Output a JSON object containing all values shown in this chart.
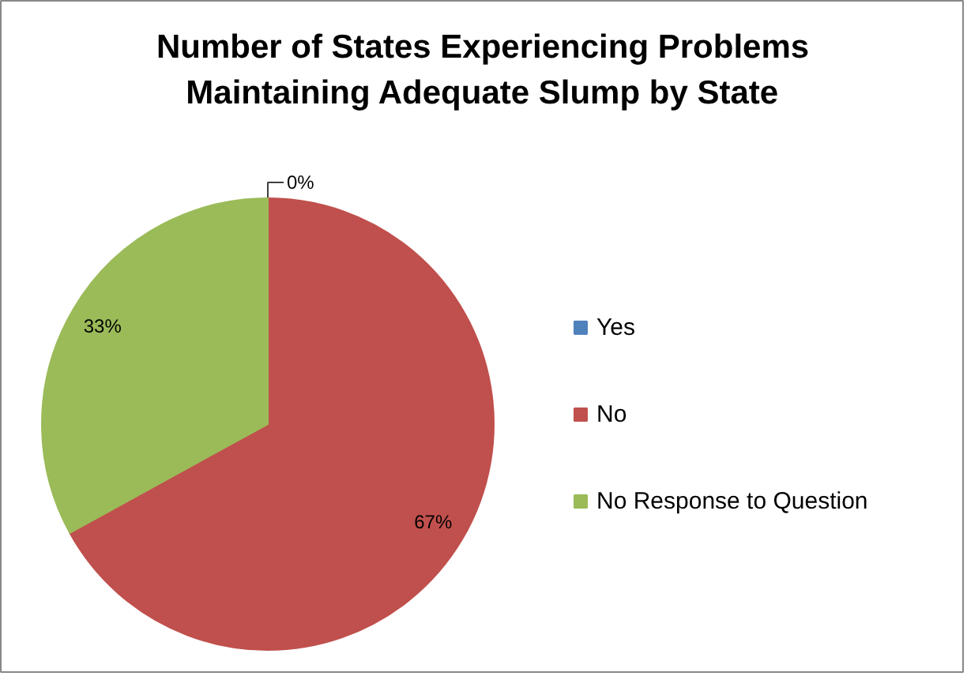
{
  "chart_data": {
    "type": "pie",
    "title": "Number of States Experiencing Problems\nMaintaining Adequate Slump by State",
    "categories": [
      "Yes",
      "No",
      "No Response to Question"
    ],
    "values": [
      0,
      67,
      33
    ],
    "colors": [
      "#4f81bd",
      "#c0504d",
      "#9bbb59"
    ],
    "value_labels": [
      "0%",
      "67%",
      "33%"
    ],
    "legend": "right"
  }
}
